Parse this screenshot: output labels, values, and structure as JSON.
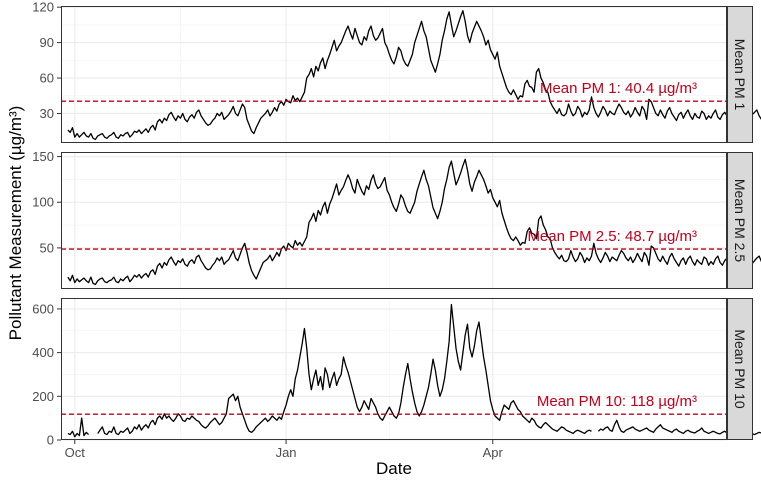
{
  "chart_data": {
    "type": "line",
    "xlabel": "Date",
    "ylabel": "Pollutant Measurement (µg/m³)",
    "x_ticks": [
      {
        "label": "Oct",
        "date": "2021-10-01"
      },
      {
        "label": "Jan",
        "date": "2022-01-01"
      },
      {
        "label": "Apr",
        "date": "2022-04-01"
      }
    ],
    "x_range": [
      "2021-09-25",
      "2022-07-12"
    ],
    "grid": true,
    "colors": {
      "line": "#000000",
      "mean": "#c0001a",
      "strip_bg": "#d9d9d9",
      "grid": "#ebebeb"
    },
    "panels": [
      {
        "strip": "Mean PM 1",
        "mean_label": "Mean PM 1: 40.4 µg/m³",
        "mean": 40.4,
        "ylim": [
          5,
          121
        ],
        "y_ticks": [
          30,
          60,
          90,
          120
        ],
        "start_date": "2021-09-28",
        "values": [
          16,
          14,
          18,
          10,
          13,
          10,
          12,
          14,
          11,
          10,
          13,
          9,
          8,
          11,
          12,
          13,
          10,
          9,
          11,
          12,
          14,
          10,
          9,
          12,
          11,
          13,
          14,
          10,
          12,
          15,
          14,
          16,
          13,
          15,
          17,
          14,
          18,
          20,
          16,
          23,
          25,
          22,
          26,
          24,
          29,
          31,
          27,
          24,
          28,
          26,
          30,
          25,
          23,
          27,
          29,
          26,
          31,
          33,
          28,
          25,
          22,
          20,
          21,
          24,
          26,
          30,
          28,
          31,
          25,
          27,
          29,
          32,
          36,
          30,
          28,
          33,
          38,
          35,
          25,
          20,
          15,
          13,
          18,
          22,
          26,
          28,
          30,
          33,
          28,
          31,
          35,
          32,
          38,
          40,
          37,
          42,
          40,
          39,
          45,
          41,
          43,
          40,
          44,
          48,
          60,
          63,
          68,
          61,
          70,
          66,
          73,
          77,
          68,
          75,
          80,
          86,
          92,
          83,
          87,
          90,
          95,
          100,
          104,
          98,
          93,
          102,
          96,
          90,
          88,
          95,
          92,
          100,
          104,
          96,
          92,
          94,
          98,
          102,
          90,
          86,
          80,
          75,
          72,
          78,
          86,
          83,
          76,
          72,
          70,
          75,
          80,
          90,
          96,
          102,
          108,
          100,
          95,
          85,
          75,
          70,
          65,
          72,
          80,
          92,
          100,
          110,
          116,
          105,
          95,
          100,
          106,
          112,
          117,
          108,
          96,
          90,
          98,
          103,
          108,
          104,
          100,
          95,
          88,
          92,
          84,
          80,
          76,
          82,
          70,
          64,
          58,
          52,
          48,
          46,
          50,
          46,
          42,
          45,
          44,
          55,
          58,
          53,
          52,
          48,
          65,
          68,
          60,
          56,
          50,
          48,
          40,
          36,
          33,
          30,
          34,
          29,
          28,
          30,
          38,
          32,
          28,
          30,
          36,
          33,
          27,
          31,
          29,
          33,
          44,
          35,
          30,
          27,
          31,
          36,
          33,
          28,
          32,
          30,
          29,
          34,
          38,
          35,
          31,
          29,
          32,
          27,
          30,
          35,
          31,
          28,
          36,
          33,
          25,
          42,
          40,
          35,
          30,
          28,
          33,
          29,
          26,
          32,
          35,
          30,
          27,
          24,
          29,
          31,
          26,
          30,
          33,
          28,
          25,
          30,
          27,
          26,
          32,
          30,
          25,
          28,
          26,
          30,
          33,
          27,
          25,
          29,
          31,
          28,
          24,
          27,
          30,
          33,
          29,
          25,
          22,
          27,
          24,
          26,
          29,
          31,
          33,
          28,
          25,
          24,
          21,
          20,
          25,
          28,
          26,
          23,
          20,
          18,
          23,
          25,
          30,
          27,
          22,
          20,
          17,
          21,
          24,
          28,
          30,
          26,
          22,
          18,
          21,
          25,
          28,
          23,
          19,
          16,
          20,
          24,
          18,
          15,
          19,
          22,
          17,
          14,
          19,
          18
        ]
      },
      {
        "strip": "Mean PM 2.5",
        "mean_label": "Mean PM 2.5: 48.7 µg/m³",
        "mean": 48.7,
        "ylim": [
          5,
          155
        ],
        "y_ticks": [
          50,
          100,
          150
        ],
        "start_date": "2021-09-28",
        "values": [
          18,
          14,
          20,
          12,
          16,
          13,
          15,
          17,
          14,
          12,
          18,
          11,
          10,
          14,
          16,
          17,
          13,
          12,
          14,
          15,
          18,
          13,
          12,
          16,
          14,
          17,
          19,
          13,
          16,
          20,
          18,
          21,
          17,
          20,
          22,
          18,
          24,
          26,
          21,
          30,
          33,
          28,
          34,
          31,
          37,
          40,
          35,
          31,
          36,
          34,
          38,
          32,
          30,
          35,
          37,
          33,
          40,
          42,
          36,
          32,
          28,
          26,
          27,
          31,
          34,
          39,
          36,
          40,
          32,
          35,
          37,
          42,
          47,
          39,
          36,
          43,
          50,
          55,
          45,
          33,
          25,
          20,
          16,
          22,
          28,
          34,
          36,
          38,
          42,
          36,
          40,
          45,
          41,
          49,
          52,
          47,
          55,
          52,
          50,
          58,
          53,
          56,
          52,
          57,
          62,
          78,
          82,
          88,
          79,
          91,
          86,
          95,
          100,
          88,
          98,
          104,
          112,
          120,
          108,
          113,
          117,
          124,
          130,
          124,
          115,
          110,
          125,
          118,
          112,
          108,
          118,
          114,
          124,
          130,
          120,
          115,
          117,
          122,
          127,
          113,
          108,
          100,
          94,
          90,
          98,
          108,
          104,
          96,
          90,
          88,
          94,
          100,
          112,
          120,
          128,
          135,
          125,
          118,
          106,
          94,
          88,
          82,
          90,
          100,
          115,
          125,
          138,
          145,
          132,
          119,
          125,
          132,
          140,
          147,
          135,
          120,
          112,
          122,
          128,
          135,
          130,
          125,
          118,
          110,
          114,
          105,
          100,
          95,
          102,
          88,
          80,
          72,
          65,
          60,
          58,
          62,
          58,
          53,
          56,
          55,
          68,
          72,
          66,
          65,
          60,
          81,
          85,
          75,
          70,
          62,
          60,
          50,
          45,
          41,
          38,
          42,
          36,
          35,
          38,
          47,
          40,
          35,
          38,
          45,
          41,
          34,
          39,
          36,
          41,
          55,
          44,
          38,
          34,
          39,
          45,
          41,
          35,
          40,
          38,
          36,
          42,
          47,
          44,
          39,
          36,
          40,
          34,
          38,
          44,
          39,
          35,
          45,
          41,
          31,
          52,
          50,
          44,
          38,
          35,
          41,
          36,
          32,
          40,
          44,
          38,
          34,
          30,
          36,
          39,
          32,
          38,
          41,
          35,
          31,
          37,
          34,
          32,
          40,
          38,
          31,
          35,
          32,
          38,
          41,
          34,
          31,
          36,
          39,
          35,
          30,
          34,
          37,
          41,
          36,
          31,
          27,
          34,
          30,
          33,
          36,
          39,
          41,
          35,
          31,
          30,
          26,
          25,
          31,
          35,
          32,
          29,
          25,
          22,
          29,
          31,
          37,
          34,
          27,
          25,
          21,
          26,
          30,
          35,
          37,
          32,
          27,
          22,
          26,
          31,
          35,
          29,
          24,
          20,
          25,
          30,
          22,
          19,
          24,
          27,
          21,
          17,
          24,
          22
        ]
      },
      {
        "strip": "Mean PM 10",
        "mean_label": "Mean PM 10: 118 µg/m³",
        "mean": 118,
        "ylim": [
          0,
          650
        ],
        "y_ticks": [
          0,
          200,
          400,
          600
        ],
        "start_date": "2021-09-28",
        "values": [
          30,
          25,
          40,
          15,
          30,
          20,
          100,
          20,
          35,
          25,
          null,
          null,
          null,
          30,
          45,
          60,
          30,
          25,
          40,
          35,
          60,
          30,
          25,
          40,
          35,
          45,
          55,
          30,
          40,
          60,
          50,
          70,
          45,
          60,
          70,
          55,
          80,
          90,
          70,
          100,
          110,
          95,
          120,
          100,
          110,
          95,
          85,
          100,
          120,
          110,
          90,
          85,
          100,
          95,
          110,
          100,
          90,
          85,
          70,
          60,
          55,
          65,
          80,
          90,
          100,
          85,
          70,
          80,
          100,
          120,
          190,
          200,
          210,
          180,
          200,
          150,
          120,
          90,
          60,
          40,
          35,
          45,
          60,
          70,
          80,
          90,
          100,
          85,
          95,
          110,
          100,
          90,
          105,
          95,
          130,
          160,
          200,
          230,
          200,
          280,
          320,
          380,
          440,
          510,
          420,
          300,
          230,
          280,
          320,
          250,
          290,
          230,
          330,
          300,
          240,
          280,
          310,
          250,
          280,
          300,
          380,
          340,
          310,
          270,
          230,
          190,
          150,
          130,
          150,
          180,
          160,
          140,
          190,
          170,
          150,
          120,
          100,
          90,
          110,
          130,
          150,
          130,
          110,
          100,
          120,
          170,
          240,
          300,
          350,
          280,
          220,
          170,
          130,
          110,
          130,
          160,
          200,
          240,
          300,
          370,
          320,
          250,
          200,
          230,
          280,
          360,
          450,
          620,
          520,
          420,
          360,
          320,
          400,
          480,
          530,
          420,
          380,
          430,
          500,
          540,
          460,
          380,
          320,
          250,
          180,
          140,
          110,
          100,
          90,
          130,
          160,
          150,
          140,
          170,
          180,
          160,
          140,
          130,
          110,
          100,
          90,
          80,
          100,
          90,
          70,
          60,
          55,
          70,
          80,
          70,
          60,
          50,
          45,
          40,
          50,
          60,
          55,
          45,
          40,
          35,
          30,
          40,
          45,
          40,
          35,
          30,
          40,
          45,
          40,
          null,
          null,
          40,
          50,
          45,
          55,
          60,
          45,
          40,
          70,
          90,
          60,
          40,
          35,
          45,
          50,
          55,
          60,
          50,
          45,
          40,
          45,
          50,
          55,
          45,
          40,
          35,
          50,
          60,
          70,
          55,
          50,
          45,
          40,
          35,
          45,
          50,
          40,
          35,
          30,
          40,
          45,
          38,
          35,
          32,
          40,
          45,
          55,
          40,
          35,
          30,
          35,
          40,
          35,
          30,
          28,
          35,
          40,
          32,
          30,
          28,
          35,
          40,
          38,
          32,
          28,
          30,
          35,
          30,
          28,
          25,
          30,
          35,
          32,
          28,
          25,
          30,
          35,
          30,
          26,
          24,
          28,
          32,
          30,
          26,
          24,
          30,
          28,
          25,
          23,
          26,
          30,
          28,
          25,
          22,
          26,
          28,
          27,
          24,
          23,
          26,
          28,
          25,
          23,
          26,
          28,
          27,
          25,
          27,
          29
        ]
      }
    ]
  }
}
